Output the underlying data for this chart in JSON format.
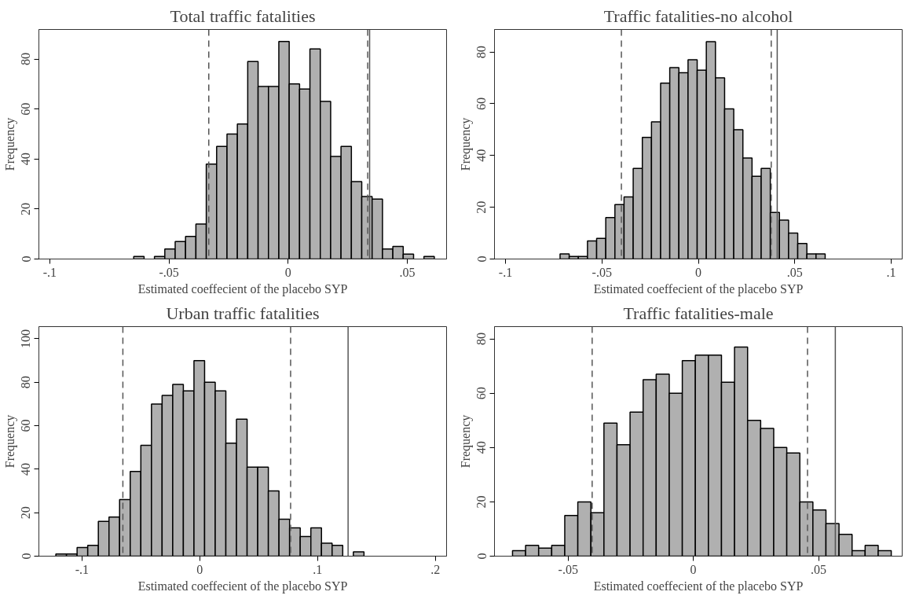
{
  "chart_data": [
    {
      "type": "histogram",
      "title": "Total traffic fatalities",
      "xlabel": "Estimated coeffecient of the placebo SYP",
      "ylabel": "Frequency",
      "color": "#b0b0b0",
      "grid": false,
      "bins": [
        -0.0648,
        -0.06045,
        -0.0561,
        -0.05175,
        -0.0474,
        -0.04305,
        -0.0387,
        -0.03435,
        -0.03,
        -0.02565,
        -0.0213,
        -0.01695,
        -0.0126,
        -0.00825,
        -0.0039,
        0.00045,
        0.0048,
        0.00915,
        0.0135,
        0.01785,
        0.0222,
        0.02655,
        0.0309,
        0.03525,
        0.0396,
        0.04395,
        0.0483,
        0.05265,
        0.057,
        0.06135
      ],
      "values": [
        1,
        0,
        1,
        4,
        7,
        9,
        14,
        38,
        45,
        50,
        54,
        79,
        69,
        69,
        87,
        70,
        68,
        84,
        63,
        41,
        45,
        31,
        25,
        24,
        4,
        5,
        2,
        0,
        1
      ],
      "xlim": [
        -0.1046,
        0.0665
      ],
      "ylim": [
        0,
        91.8
      ],
      "xticks": [
        {
          "value": -0.1,
          "label": "-.1"
        },
        {
          "value": -0.05,
          "label": "-.05"
        },
        0,
        {
          "value": 0.05,
          "label": ".05"
        }
      ],
      "yticks": [
        0,
        20,
        40,
        60,
        80
      ],
      "ref_lines": [
        {
          "axis": "x",
          "value": -0.0333,
          "line_style": "dashed",
          "color": "#555555"
        },
        {
          "axis": "x",
          "value": 0.0334,
          "line_style": "dashed",
          "color": "#555555"
        },
        {
          "axis": "x",
          "value": 0.0342,
          "line_style": "solid",
          "color": "#555555"
        }
      ]
    },
    {
      "type": "histogram",
      "title": "Traffic fatalities-no alcohol",
      "xlabel": "Estimated coeffecient of the placebo SYP",
      "ylabel": "Frequency",
      "color": "#b0b0b0",
      "grid": false,
      "bins": [
        -0.0717,
        -0.06696,
        -0.06222,
        -0.05748,
        -0.05274,
        -0.048,
        -0.04326,
        -0.03852,
        -0.03378,
        -0.02904,
        -0.0243,
        -0.01956,
        -0.01482,
        -0.01008,
        -0.00534,
        -0.0006,
        0.00414,
        0.00888,
        0.01362,
        0.01836,
        0.0231,
        0.02784,
        0.03258,
        0.03732,
        0.04206,
        0.0468,
        0.05154,
        0.05628,
        0.06102,
        0.06576
      ],
      "values": [
        2,
        1,
        1,
        7,
        8,
        16,
        21,
        24,
        35,
        47,
        53,
        68,
        74,
        72,
        77,
        73,
        84,
        70,
        58,
        50,
        39,
        32,
        35,
        18,
        15,
        10,
        6,
        2,
        2
      ],
      "xlim": [
        -0.1057,
        0.1057
      ],
      "ylim": [
        0,
        88.7
      ],
      "xticks": [
        {
          "value": -0.1,
          "label": "-.1"
        },
        {
          "value": -0.05,
          "label": "-.05"
        },
        0,
        {
          "value": 0.05,
          "label": ".05"
        },
        {
          "value": 0.1,
          "label": ".1"
        }
      ],
      "yticks": [
        0,
        20,
        40,
        60,
        80
      ],
      "ref_lines": [
        {
          "axis": "x",
          "value": -0.0399,
          "line_style": "dashed",
          "color": "#555555"
        },
        {
          "axis": "x",
          "value": 0.0378,
          "line_style": "dashed",
          "color": "#555555"
        },
        {
          "axis": "x",
          "value": 0.0409,
          "line_style": "solid",
          "color": "#555555"
        }
      ]
    },
    {
      "type": "histogram",
      "title": "Urban traffic fatalities",
      "xlabel": "Estimated coeffecient of the placebo SYP",
      "ylabel": "Frequency",
      "color": "#b0b0b0",
      "grid": false,
      "bins": [
        -0.1222,
        -0.11318,
        -0.10416,
        -0.09514,
        -0.08612,
        -0.0771,
        -0.06808,
        -0.05906,
        -0.05004,
        -0.04102,
        -0.032,
        -0.02298,
        -0.01396,
        -0.00494,
        0.00408,
        0.0131,
        0.02212,
        0.03114,
        0.04016,
        0.04918,
        0.0582,
        0.06722,
        0.07624,
        0.08526,
        0.09428,
        0.1033,
        0.11232,
        0.12134,
        0.13036,
        0.13938
      ],
      "values": [
        1,
        1,
        4,
        5,
        16,
        18,
        26,
        39,
        51,
        70,
        74,
        79,
        76,
        90,
        80,
        76,
        52,
        63,
        41,
        41,
        30,
        17,
        13,
        9,
        13,
        6,
        5,
        0,
        2
      ],
      "xlim": [
        -0.1366,
        0.2095
      ],
      "ylim": [
        0,
        105.6
      ],
      "xticks": [
        {
          "value": -0.1,
          "label": "-.1"
        },
        0,
        {
          "value": 0.1,
          "label": ".1"
        },
        {
          "value": 0.2,
          "label": ".2"
        }
      ],
      "yticks": [
        0,
        20,
        40,
        60,
        80,
        100
      ],
      "ref_lines": [
        {
          "axis": "x",
          "value": -0.0653,
          "line_style": "dashed",
          "color": "#555555"
        },
        {
          "axis": "x",
          "value": 0.0771,
          "line_style": "dashed",
          "color": "#555555"
        },
        {
          "axis": "x",
          "value": 0.1259,
          "line_style": "solid",
          "color": "#555555"
        }
      ]
    },
    {
      "type": "histogram",
      "title": "Traffic fatalities-male",
      "xlabel": "Estimated coeffecient of the placebo SYP",
      "ylabel": "Frequency",
      "color": "#b0b0b0",
      "grid": false,
      "bins": [
        -0.0722,
        -0.066985,
        -0.06177,
        -0.056555,
        -0.05134,
        -0.046125,
        -0.04091,
        -0.035695,
        -0.03048,
        -0.025265,
        -0.02005,
        -0.014835,
        -0.00962,
        -0.004405,
        0.00081,
        0.006025,
        0.01124,
        0.016455,
        0.02167,
        0.026885,
        0.0321,
        0.037315,
        0.04253,
        0.047745,
        0.05296,
        0.058175,
        0.06339,
        0.068605,
        0.07382,
        0.079035
      ],
      "values": [
        2,
        4,
        3,
        4,
        15,
        20,
        16,
        49,
        41,
        53,
        65,
        67,
        60,
        72,
        74,
        74,
        64,
        77,
        50,
        47,
        40,
        38,
        20,
        17,
        12,
        8,
        2,
        4,
        2
      ],
      "xlim": [
        -0.0794,
        0.0834
      ],
      "ylim": [
        0,
        84.5
      ],
      "xticks": [
        {
          "value": -0.05,
          "label": "-.05"
        },
        0,
        {
          "value": 0.05,
          "label": ".05"
        }
      ],
      "yticks": [
        0,
        20,
        40,
        60,
        80
      ],
      "ref_lines": [
        {
          "axis": "x",
          "value": -0.0404,
          "line_style": "dashed",
          "color": "#555555"
        },
        {
          "axis": "x",
          "value": 0.0456,
          "line_style": "dashed",
          "color": "#555555"
        },
        {
          "axis": "x",
          "value": 0.0567,
          "line_style": "solid",
          "color": "#555555"
        }
      ]
    }
  ]
}
